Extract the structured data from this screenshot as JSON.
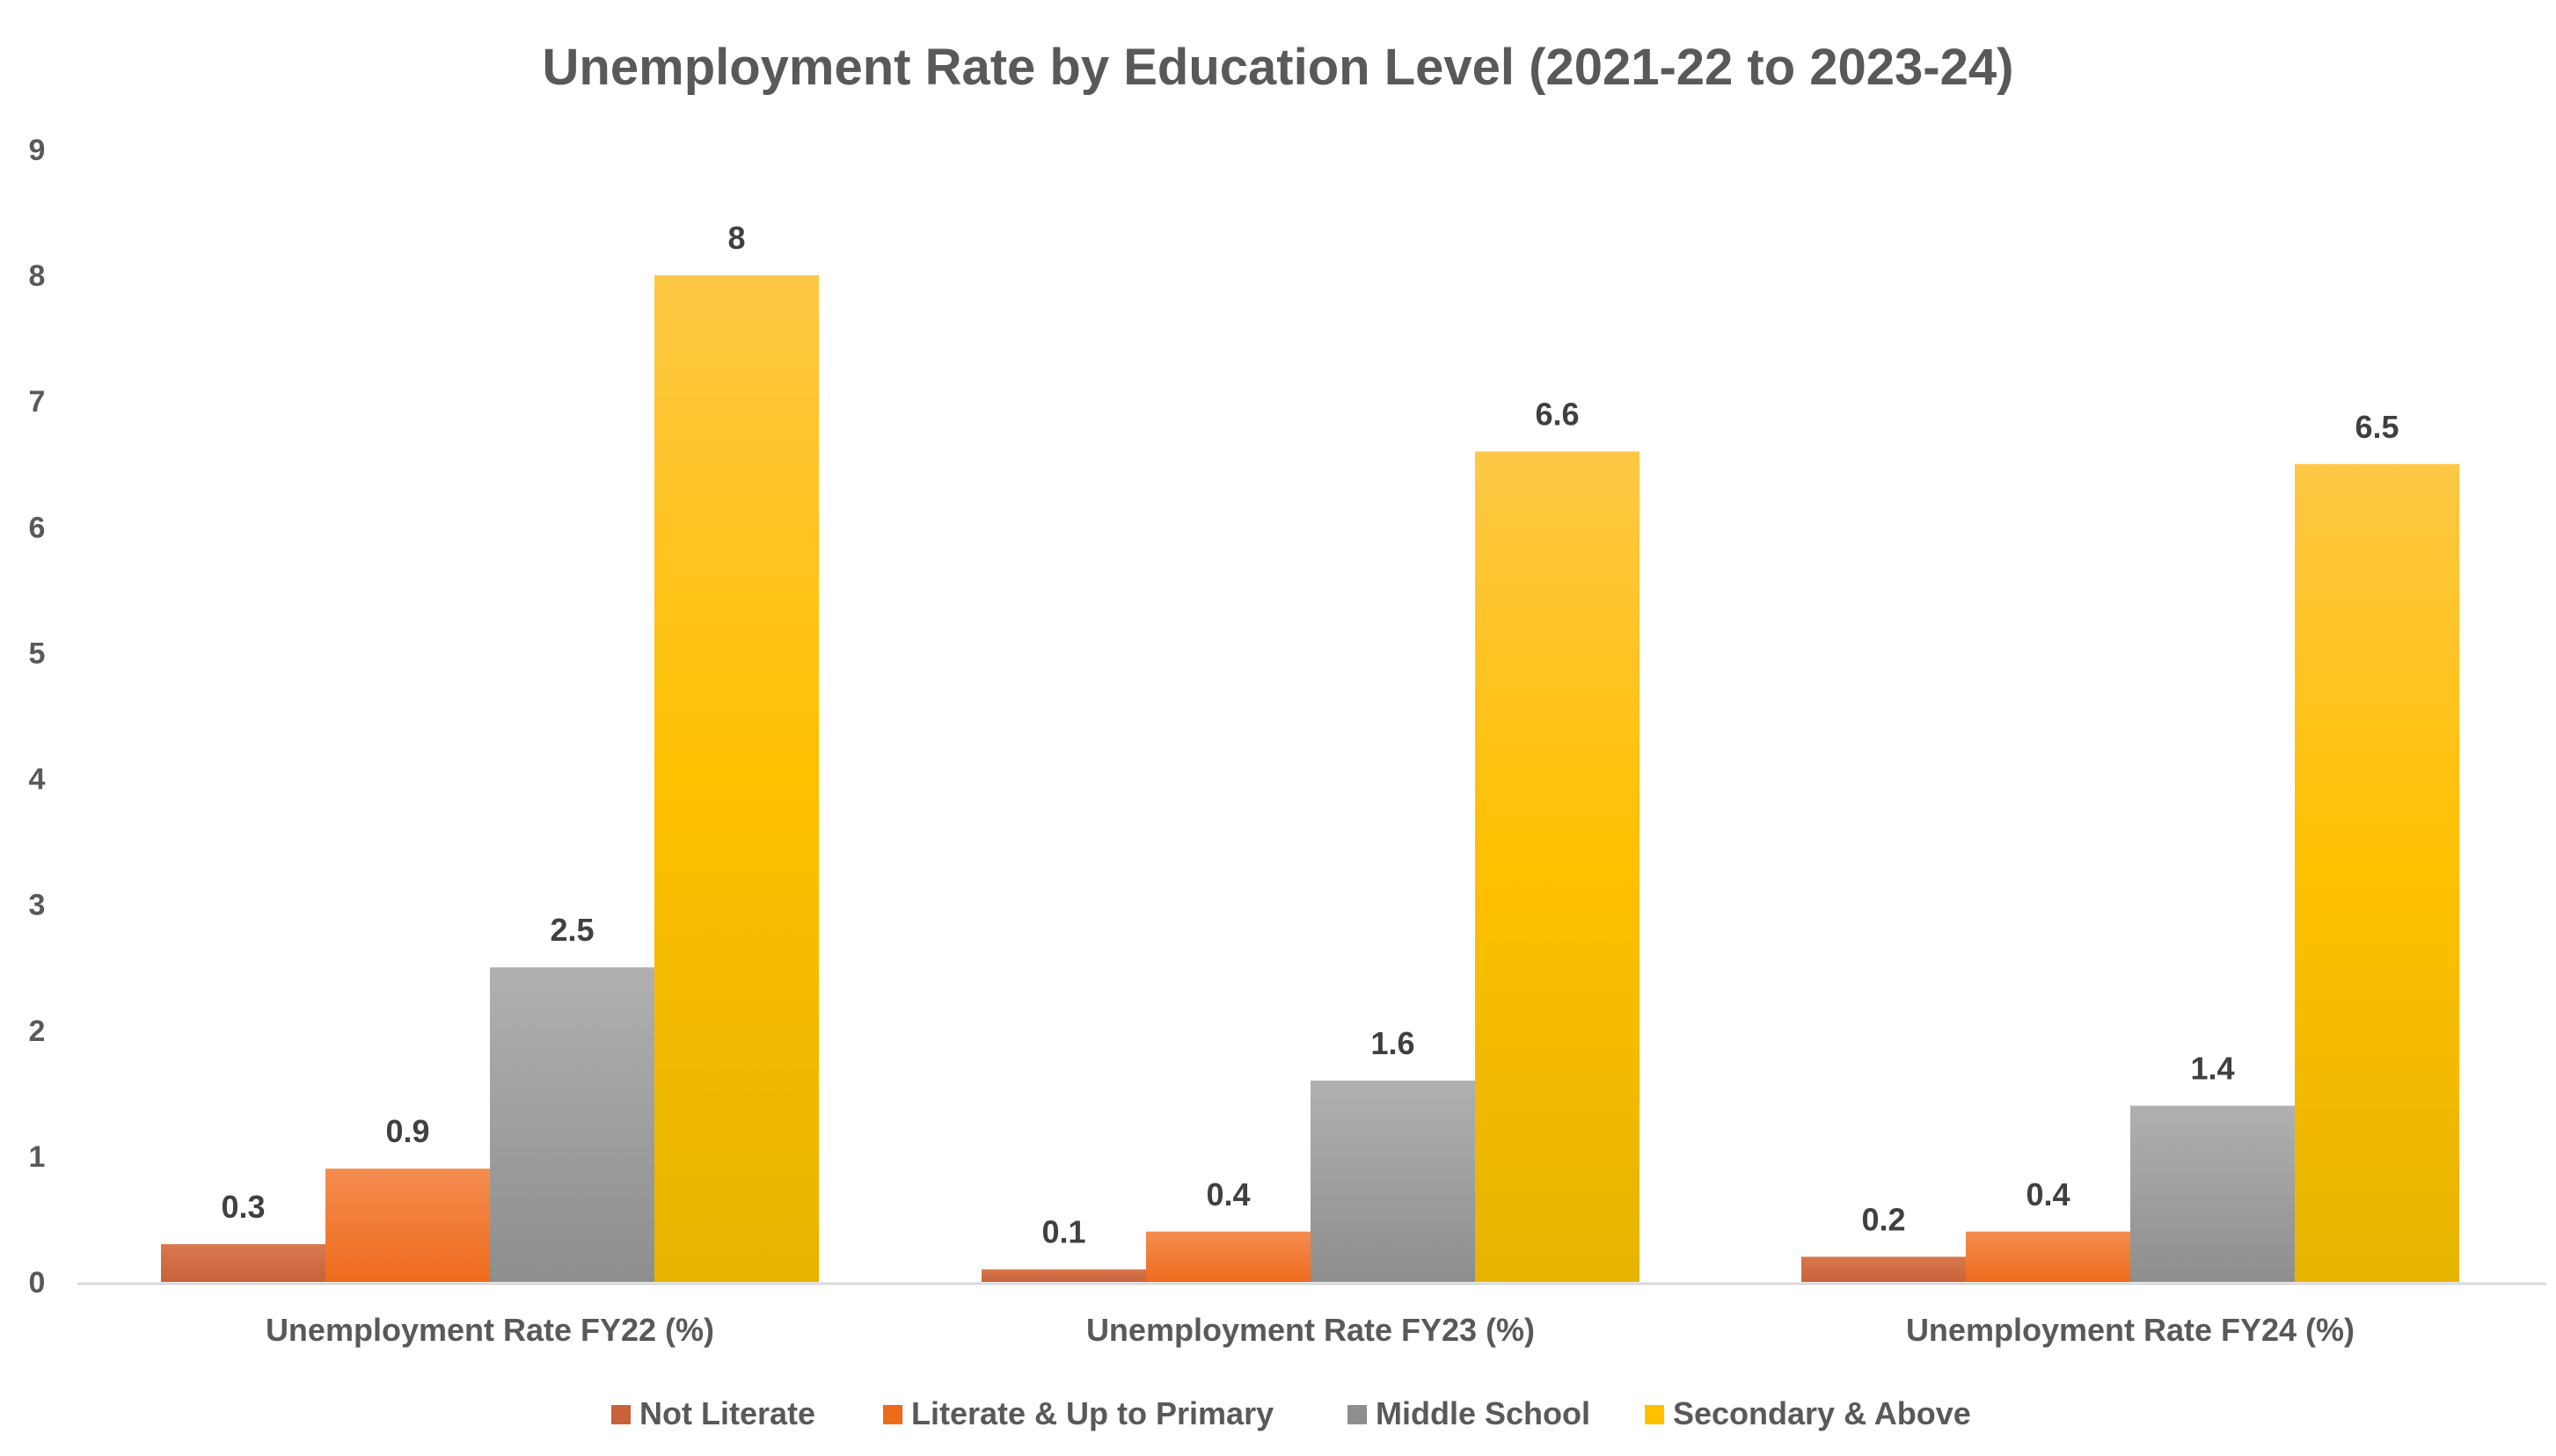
{
  "chart_data": {
    "type": "bar",
    "title": "Unemployment Rate by Education Level (2021-22 to 2023-24)",
    "categories": [
      "Unemployment Rate FY22 (%)",
      "Unemployment Rate FY23 (%)",
      "Unemployment Rate FY24 (%)"
    ],
    "series": [
      {
        "name": "Not Literate",
        "values": [
          0.3,
          0.1,
          0.2
        ],
        "color": "#C8623A",
        "color_light": "#D9784E"
      },
      {
        "name": "Literate & Up to Primary",
        "values": [
          0.9,
          0.4,
          0.4
        ],
        "color": "#EE6B1C",
        "color_light": "#F48D50"
      },
      {
        "name": "Middle School",
        "values": [
          2.5,
          1.6,
          1.4
        ],
        "color": "#8E8E8E",
        "color_light": "#B0B0B0"
      },
      {
        "name": "Secondary & Above",
        "values": [
          8,
          6.6,
          6.5
        ],
        "color": "#E6B400",
        "color_light": "#FFC845",
        "color_mid": "#FFC000"
      }
    ],
    "yticks": [
      "0",
      "1",
      "2",
      "3",
      "4",
      "5",
      "6",
      "7",
      "8",
      "9"
    ],
    "ylim": [
      0,
      9
    ],
    "xlabel": "",
    "ylabel": "",
    "grid": false,
    "legend_position": "bottom"
  }
}
